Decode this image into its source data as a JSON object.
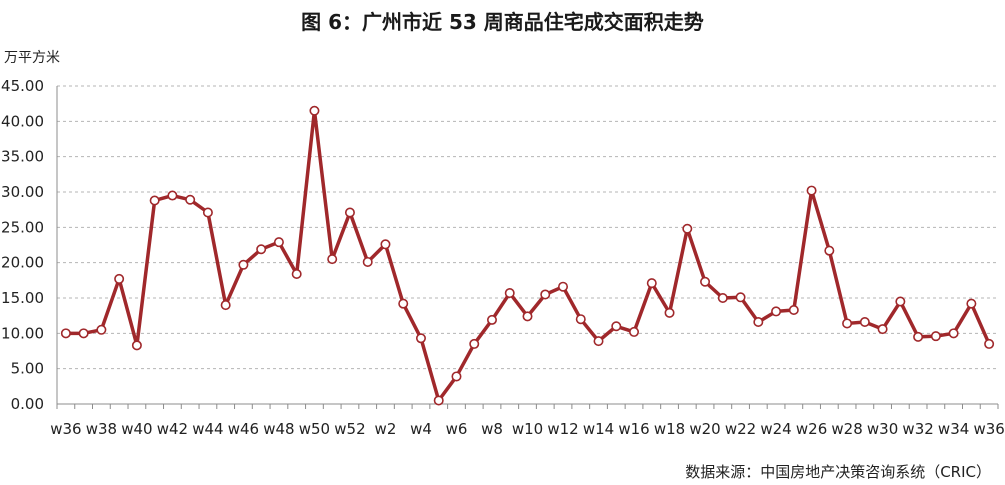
{
  "chart_data": {
    "type": "line",
    "title": "图 6：广州市近 53 周商品住宅成交面积走势",
    "ylabel": "万平方米",
    "xlabel": "",
    "ylim": [
      0,
      45
    ],
    "y_ticks": [
      "0.00",
      "5.00",
      "10.00",
      "15.00",
      "20.00",
      "25.00",
      "30.00",
      "35.00",
      "40.00",
      "45.00"
    ],
    "x_tick_labels": [
      "w36",
      "w38",
      "w40",
      "w42",
      "w44",
      "w46",
      "w48",
      "w50",
      "w52",
      "w2",
      "w4",
      "w6",
      "w8",
      "w10",
      "w12",
      "w14",
      "w16",
      "w18",
      "w20",
      "w22",
      "w24",
      "w26",
      "w28",
      "w30",
      "w32",
      "w34",
      "w36"
    ],
    "categories": [
      "w36",
      "w37",
      "w38",
      "w39",
      "w40",
      "w41",
      "w42",
      "w43",
      "w44",
      "w45",
      "w46",
      "w47",
      "w48",
      "w49",
      "w50",
      "w51",
      "w52",
      "w1",
      "w2",
      "w3",
      "w4",
      "w5",
      "w6",
      "w7",
      "w8",
      "w9",
      "w10",
      "w11",
      "w12",
      "w13",
      "w14",
      "w15",
      "w16",
      "w17",
      "w18",
      "w19",
      "w20",
      "w21",
      "w22",
      "w23",
      "w24",
      "w25",
      "w26",
      "w27",
      "w28",
      "w29",
      "w30",
      "w31",
      "w32",
      "w33",
      "w34",
      "w35",
      "w36"
    ],
    "series": [
      {
        "values": [
          10.0,
          10.0,
          10.5,
          17.7,
          8.3,
          28.8,
          29.5,
          28.9,
          27.1,
          14.0,
          19.7,
          21.9,
          22.9,
          18.4,
          41.5,
          20.5,
          27.1,
          20.1,
          22.6,
          14.2,
          9.3,
          0.5,
          3.9,
          8.5,
          11.9,
          15.7,
          12.4,
          15.5,
          16.6,
          12.0,
          8.9,
          11.0,
          10.2,
          17.1,
          12.9,
          24.8,
          17.3,
          15.0,
          15.1,
          11.6,
          13.1,
          13.3,
          30.2,
          21.7,
          11.4,
          11.6,
          10.6,
          14.5,
          9.5,
          9.6,
          10.0,
          14.2,
          8.5
        ]
      }
    ],
    "grid": true,
    "legend": "none",
    "line_color": "#a0282b",
    "marker_fill": "#ffffff"
  },
  "source_note": "数据来源：中国房地产决策咨询系统（CRIC）"
}
